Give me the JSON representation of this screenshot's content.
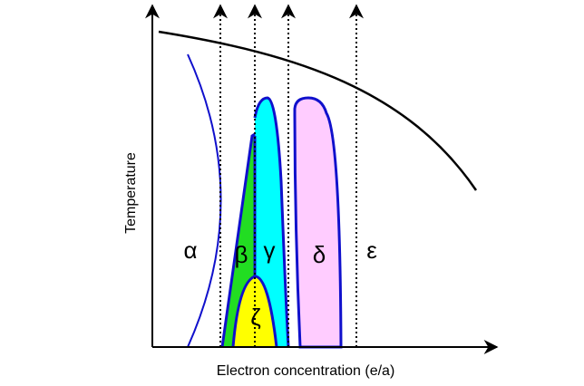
{
  "axes": {
    "y_label": "Temperature",
    "x_label": "Electron concentration (e/a)"
  },
  "phases": [
    {
      "label": "α"
    },
    {
      "label": "β"
    },
    {
      "label": "γ"
    },
    {
      "label": "δ"
    },
    {
      "label": "ε"
    },
    {
      "label": "ζ"
    }
  ]
}
